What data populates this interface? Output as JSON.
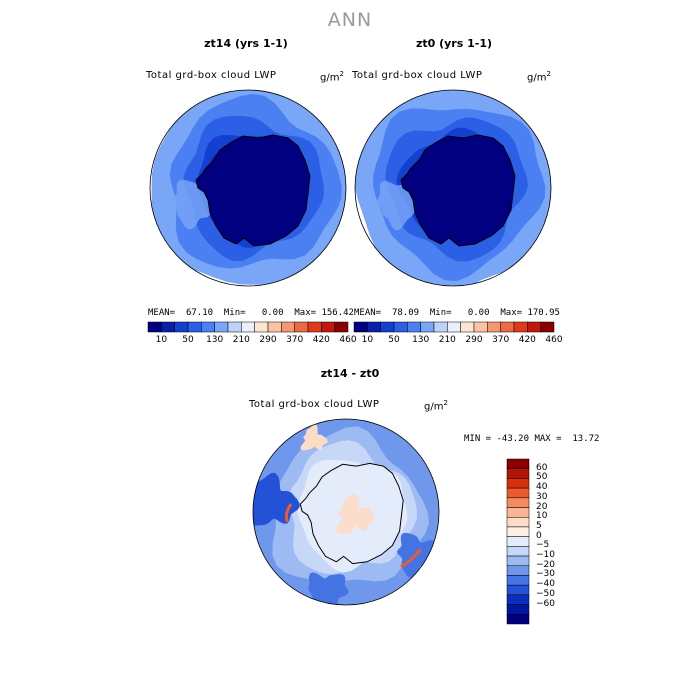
{
  "title": "ANN",
  "palette": {
    "seq": [
      "#000080",
      "#0a1fa8",
      "#1340d0",
      "#2b60e6",
      "#4b80f2",
      "#7aa6f7",
      "#bcd2fa",
      "#e9f0fc",
      "#fde5d2",
      "#fbc3a3",
      "#f59773",
      "#ec6a44",
      "#dd3b1c",
      "#c0180a",
      "#8a0000"
    ],
    "diff": [
      "#8a0000",
      "#b3140a",
      "#d8300f",
      "#ed5a2e",
      "#f7895f",
      "#fbb593",
      "#fddcc5",
      "#fdf1e6",
      "#e4ecfb",
      "#c7d7f7",
      "#9dbaf2",
      "#6f98ec",
      "#4474e4",
      "#2452d6",
      "#0c2ec0",
      "#0015a0",
      "#000080"
    ],
    "land": "#000080",
    "land_diff": "#e4ecfb",
    "stroke": "#000000"
  },
  "panels": [
    {
      "case": "zt14 (yrs 1-1)",
      "varname": "Total grd-box cloud LWP",
      "unit": "g/m",
      "unit_exp": "2",
      "mean_label": "MEAN=",
      "mean": "67.10",
      "min_label": "Min=",
      "min": "0.00",
      "max_label": "Max=",
      "max": "156.42"
    },
    {
      "case": "zt0 (yrs 1-1)",
      "varname": "Total grd-box cloud LWP",
      "unit": "g/m",
      "unit_exp": "2",
      "mean_label": "MEAN=",
      "mean": "78.09",
      "min_label": "Min=",
      "min": "0.00",
      "max_label": "Max=",
      "max": "170.95"
    }
  ],
  "colorbar_ticks": [
    "10",
    "50",
    "130",
    "210",
    "290",
    "370",
    "420",
    "460"
  ],
  "diff": {
    "case": "zt14 - zt0",
    "varname": "Total grd-box cloud LWP",
    "unit": "g/m",
    "unit_exp": "2",
    "stats": "MIN = -43.20 MAX =  13.72",
    "ticks": [
      "60",
      "50",
      "40",
      "30",
      "20",
      "10",
      "5",
      "0",
      "−5",
      "−10",
      "−20",
      "−30",
      "−40",
      "−50",
      "−60"
    ]
  },
  "chart_data": [
    {
      "type": "heatmap",
      "title": "zt14 (yrs 1-1)",
      "subtitle": "Total grd-box cloud LWP",
      "units": "g/m2",
      "projection": "south polar stereographic",
      "stats": {
        "mean": 67.1,
        "min": 0.0,
        "max": 156.42
      },
      "contour_levels": [
        10,
        50,
        130,
        210,
        290,
        370,
        420,
        460
      ]
    },
    {
      "type": "heatmap",
      "title": "zt0 (yrs 1-1)",
      "subtitle": "Total grd-box cloud LWP",
      "units": "g/m2",
      "projection": "south polar stereographic",
      "stats": {
        "mean": 78.09,
        "min": 0.0,
        "max": 170.95
      },
      "contour_levels": [
        10,
        50,
        130,
        210,
        290,
        370,
        420,
        460
      ]
    },
    {
      "type": "heatmap",
      "title": "zt14 - zt0",
      "subtitle": "Total grd-box cloud LWP",
      "units": "g/m2",
      "projection": "south polar stereographic",
      "stats": {
        "min": -43.2,
        "max": 13.72
      },
      "contour_levels": [
        -60,
        -50,
        -40,
        -30,
        -20,
        -10,
        -5,
        0,
        5,
        10,
        20,
        30,
        40,
        50,
        60
      ]
    }
  ]
}
